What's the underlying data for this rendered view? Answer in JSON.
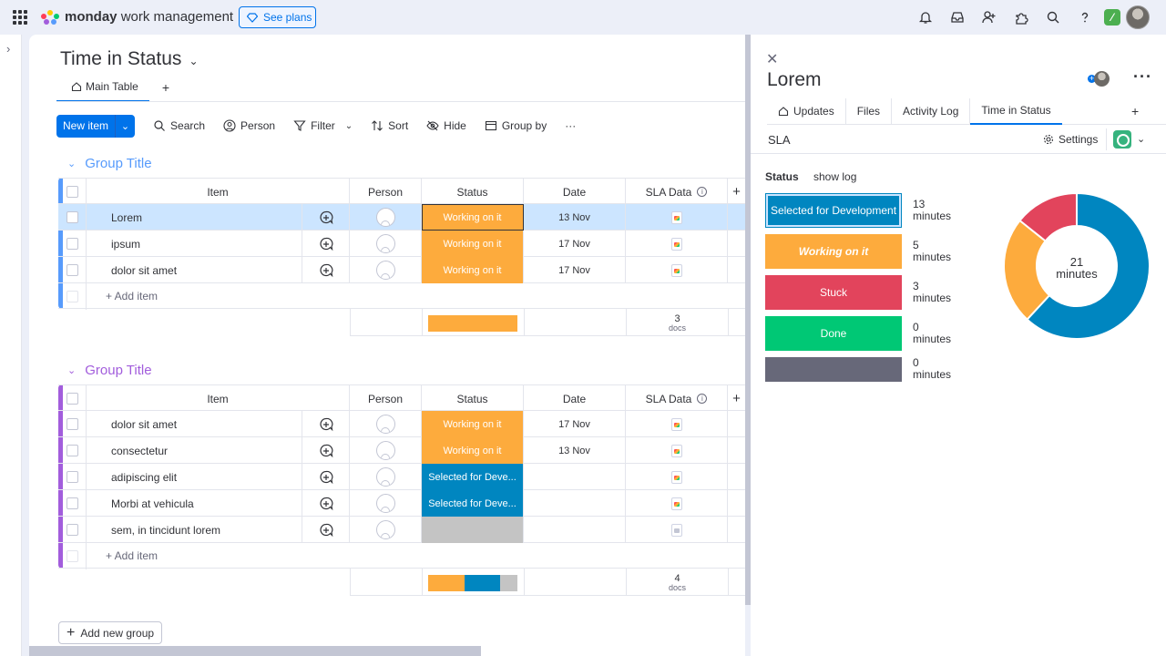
{
  "topbar": {
    "brand_bold": "monday",
    "brand_rest": "work management",
    "see_plans": "See plans",
    "colors": {
      "accent": "#0073ea"
    }
  },
  "board": {
    "title": "Time in Status",
    "tab_main": "Main Table",
    "tab_add": "+",
    "toolbar": {
      "new_item": "New item",
      "search": "Search",
      "person": "Person",
      "filter": "Filter",
      "sort": "Sort",
      "hide": "Hide",
      "group_by": "Group by",
      "more": "···"
    },
    "columns": {
      "item": "Item",
      "person": "Person",
      "status": "Status",
      "date": "Date",
      "sla": "SLA Data",
      "add": "+"
    },
    "add_item": "+ Add item",
    "add_group": "Add new group",
    "groups": [
      {
        "title": "Group Title",
        "color": "#579bfc",
        "rows": [
          {
            "name": "Lorem",
            "status": "Working on it",
            "status_color": "#fdab3d",
            "date": "13 Nov",
            "selected": true
          },
          {
            "name": "ipsum",
            "status": "Working on it",
            "status_color": "#fdab3d",
            "date": "17 Nov"
          },
          {
            "name": "dolor sit amet",
            "status": "Working on it",
            "status_color": "#fdab3d",
            "date": "17 Nov"
          }
        ],
        "docs_count": "3",
        "docs_label": "docs"
      },
      {
        "title": "Group Title",
        "color": "#a25ddc",
        "rows": [
          {
            "name": "dolor sit amet",
            "status": "Working on it",
            "status_color": "#fdab3d",
            "date": "17 Nov"
          },
          {
            "name": "consectetur",
            "status": "Working on it",
            "status_color": "#fdab3d",
            "date": "13 Nov"
          },
          {
            "name": "adipiscing elit",
            "status": "Selected for Deve...",
            "status_color": "#0086c0",
            "date": ""
          },
          {
            "name": "Morbi at vehicula",
            "status": "Selected for Deve...",
            "status_color": "#0086c0",
            "date": ""
          },
          {
            "name": "sem, in tincidunt lorem",
            "status": "",
            "status_color": "#c4c4c4",
            "date": ""
          }
        ],
        "docs_count": "4",
        "docs_label": "docs"
      }
    ]
  },
  "panel": {
    "title": "Lorem",
    "tabs": [
      "Updates",
      "Files",
      "Activity Log",
      "Time in Status"
    ],
    "tab_add": "+",
    "sla_label": "SLA",
    "settings": "Settings",
    "status_header": "Status",
    "show_log": "show log",
    "statuses": [
      {
        "label": "Selected for Development",
        "minutes": "13",
        "unit": "minutes",
        "color": "#0086c0"
      },
      {
        "label": "Working on it",
        "minutes": "5",
        "unit": "minutes",
        "color": "#fdab3d"
      },
      {
        "label": "Stuck",
        "minutes": "3",
        "unit": "minutes",
        "color": "#e2445c"
      },
      {
        "label": "Done",
        "minutes": "0",
        "unit": "minutes",
        "color": "#00c875"
      },
      {
        "label": "",
        "minutes": "0",
        "unit": "minutes",
        "color": "#676879"
      }
    ],
    "donut_total": "21",
    "donut_unit": "minutes"
  }
}
